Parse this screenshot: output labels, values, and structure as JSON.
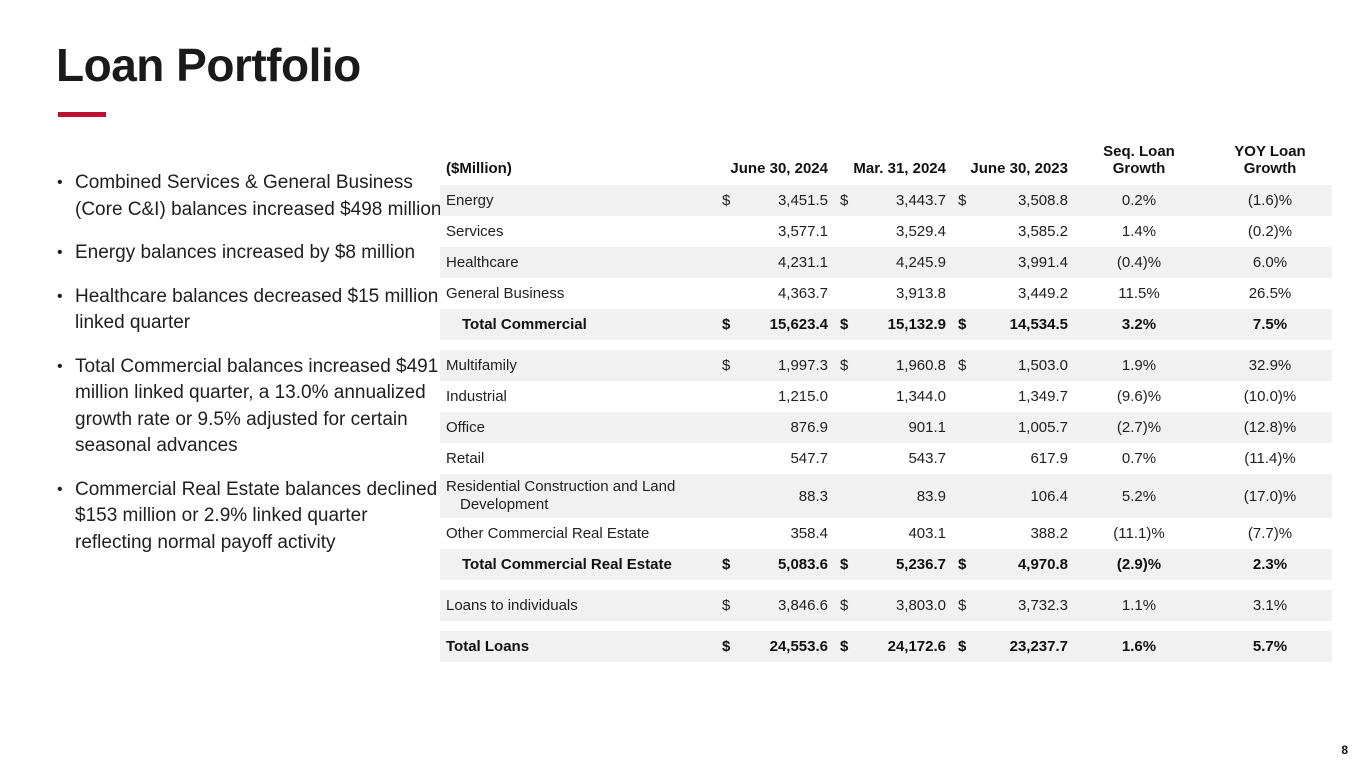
{
  "slide": {
    "title": "Loan Portfolio",
    "page_number": "8",
    "accent_color": "#c01031",
    "stripe_color": "#f1f1f1"
  },
  "bullets": [
    "Combined Services & General Business (Core C&I) balances increased $498 million",
    "Energy balances increased by $8 million",
    "Healthcare balances decreased $15 million linked quarter",
    "Total Commercial balances increased $491 million linked quarter, a 13.0% annualized growth rate or 9.5% adjusted for certain seasonal advances",
    "Commercial Real Estate balances declined $153 million or 2.9% linked quarter reflecting normal payoff activity"
  ],
  "table": {
    "unit_label": "($Million)",
    "columns": [
      "June 30, 2024",
      "Mar. 31, 2024",
      "June 30, 2023",
      "Seq. Loan Growth",
      "YOY Loan Growth"
    ],
    "rows": [
      {
        "label": "Energy",
        "cells": [
          "$",
          "3,451.5",
          "$",
          "3,443.7",
          "$",
          "3,508.8",
          "0.2%",
          "(1.6)%"
        ],
        "shaded": true
      },
      {
        "label": "Services",
        "cells": [
          "",
          "3,577.1",
          "",
          "3,529.4",
          "",
          "3,585.2",
          "1.4%",
          "(0.2)%"
        ]
      },
      {
        "label": "Healthcare",
        "cells": [
          "",
          "4,231.1",
          "",
          "4,245.9",
          "",
          "3,991.4",
          "(0.4)%",
          "6.0%"
        ],
        "shaded": true
      },
      {
        "label": "General Business",
        "cells": [
          "",
          "4,363.7",
          "",
          "3,913.8",
          "",
          "3,449.2",
          "11.5%",
          "26.5%"
        ]
      },
      {
        "label": "Total Commercial",
        "cells": [
          "$",
          "15,623.4",
          "$",
          "15,132.9",
          "$",
          "14,534.5",
          "3.2%",
          "7.5%"
        ],
        "shaded": true,
        "bold": true,
        "indent": true
      },
      {
        "label": "Multifamily",
        "cells": [
          "$",
          "1,997.3",
          "$",
          "1,960.8",
          "$",
          "1,503.0",
          "1.9%",
          "32.9%"
        ],
        "shaded": true,
        "gap_before": true
      },
      {
        "label": "Industrial",
        "cells": [
          "",
          "1,215.0",
          "",
          "1,344.0",
          "",
          "1,349.7",
          "(9.6)%",
          "(10.0)%"
        ]
      },
      {
        "label": "Office",
        "cells": [
          "",
          "876.9",
          "",
          "901.1",
          "",
          "1,005.7",
          "(2.7)%",
          "(12.8)%"
        ],
        "shaded": true
      },
      {
        "label": "Retail",
        "cells": [
          "",
          "547.7",
          "",
          "543.7",
          "",
          "617.9",
          "0.7%",
          "(11.4)%"
        ]
      },
      {
        "label": "Residential Construction and Land Development",
        "cells": [
          "",
          "88.3",
          "",
          "83.9",
          "",
          "106.4",
          "5.2%",
          "(17.0)%"
        ],
        "shaded": true
      },
      {
        "label": "Other Commercial Real Estate",
        "cells": [
          "",
          "358.4",
          "",
          "403.1",
          "",
          "388.2",
          "(11.1)%",
          "(7.7)%"
        ]
      },
      {
        "label": "Total Commercial Real Estate",
        "cells": [
          "$",
          "5,083.6",
          "$",
          "5,236.7",
          "$",
          "4,970.8",
          "(2.9)%",
          "2.3%"
        ],
        "shaded": true,
        "bold": true,
        "indent": true
      },
      {
        "label": "Loans to individuals",
        "cells": [
          "$",
          "3,846.6",
          "$",
          "3,803.0",
          "$",
          "3,732.3",
          "1.1%",
          "3.1%"
        ],
        "shaded": true,
        "gap_before": true
      },
      {
        "label": "Total Loans",
        "cells": [
          "$",
          "24,553.6",
          "$",
          "24,172.6",
          "$",
          "23,237.7",
          "1.6%",
          "5.7%"
        ],
        "shaded": true,
        "bold": true,
        "gap_before": true
      }
    ]
  }
}
